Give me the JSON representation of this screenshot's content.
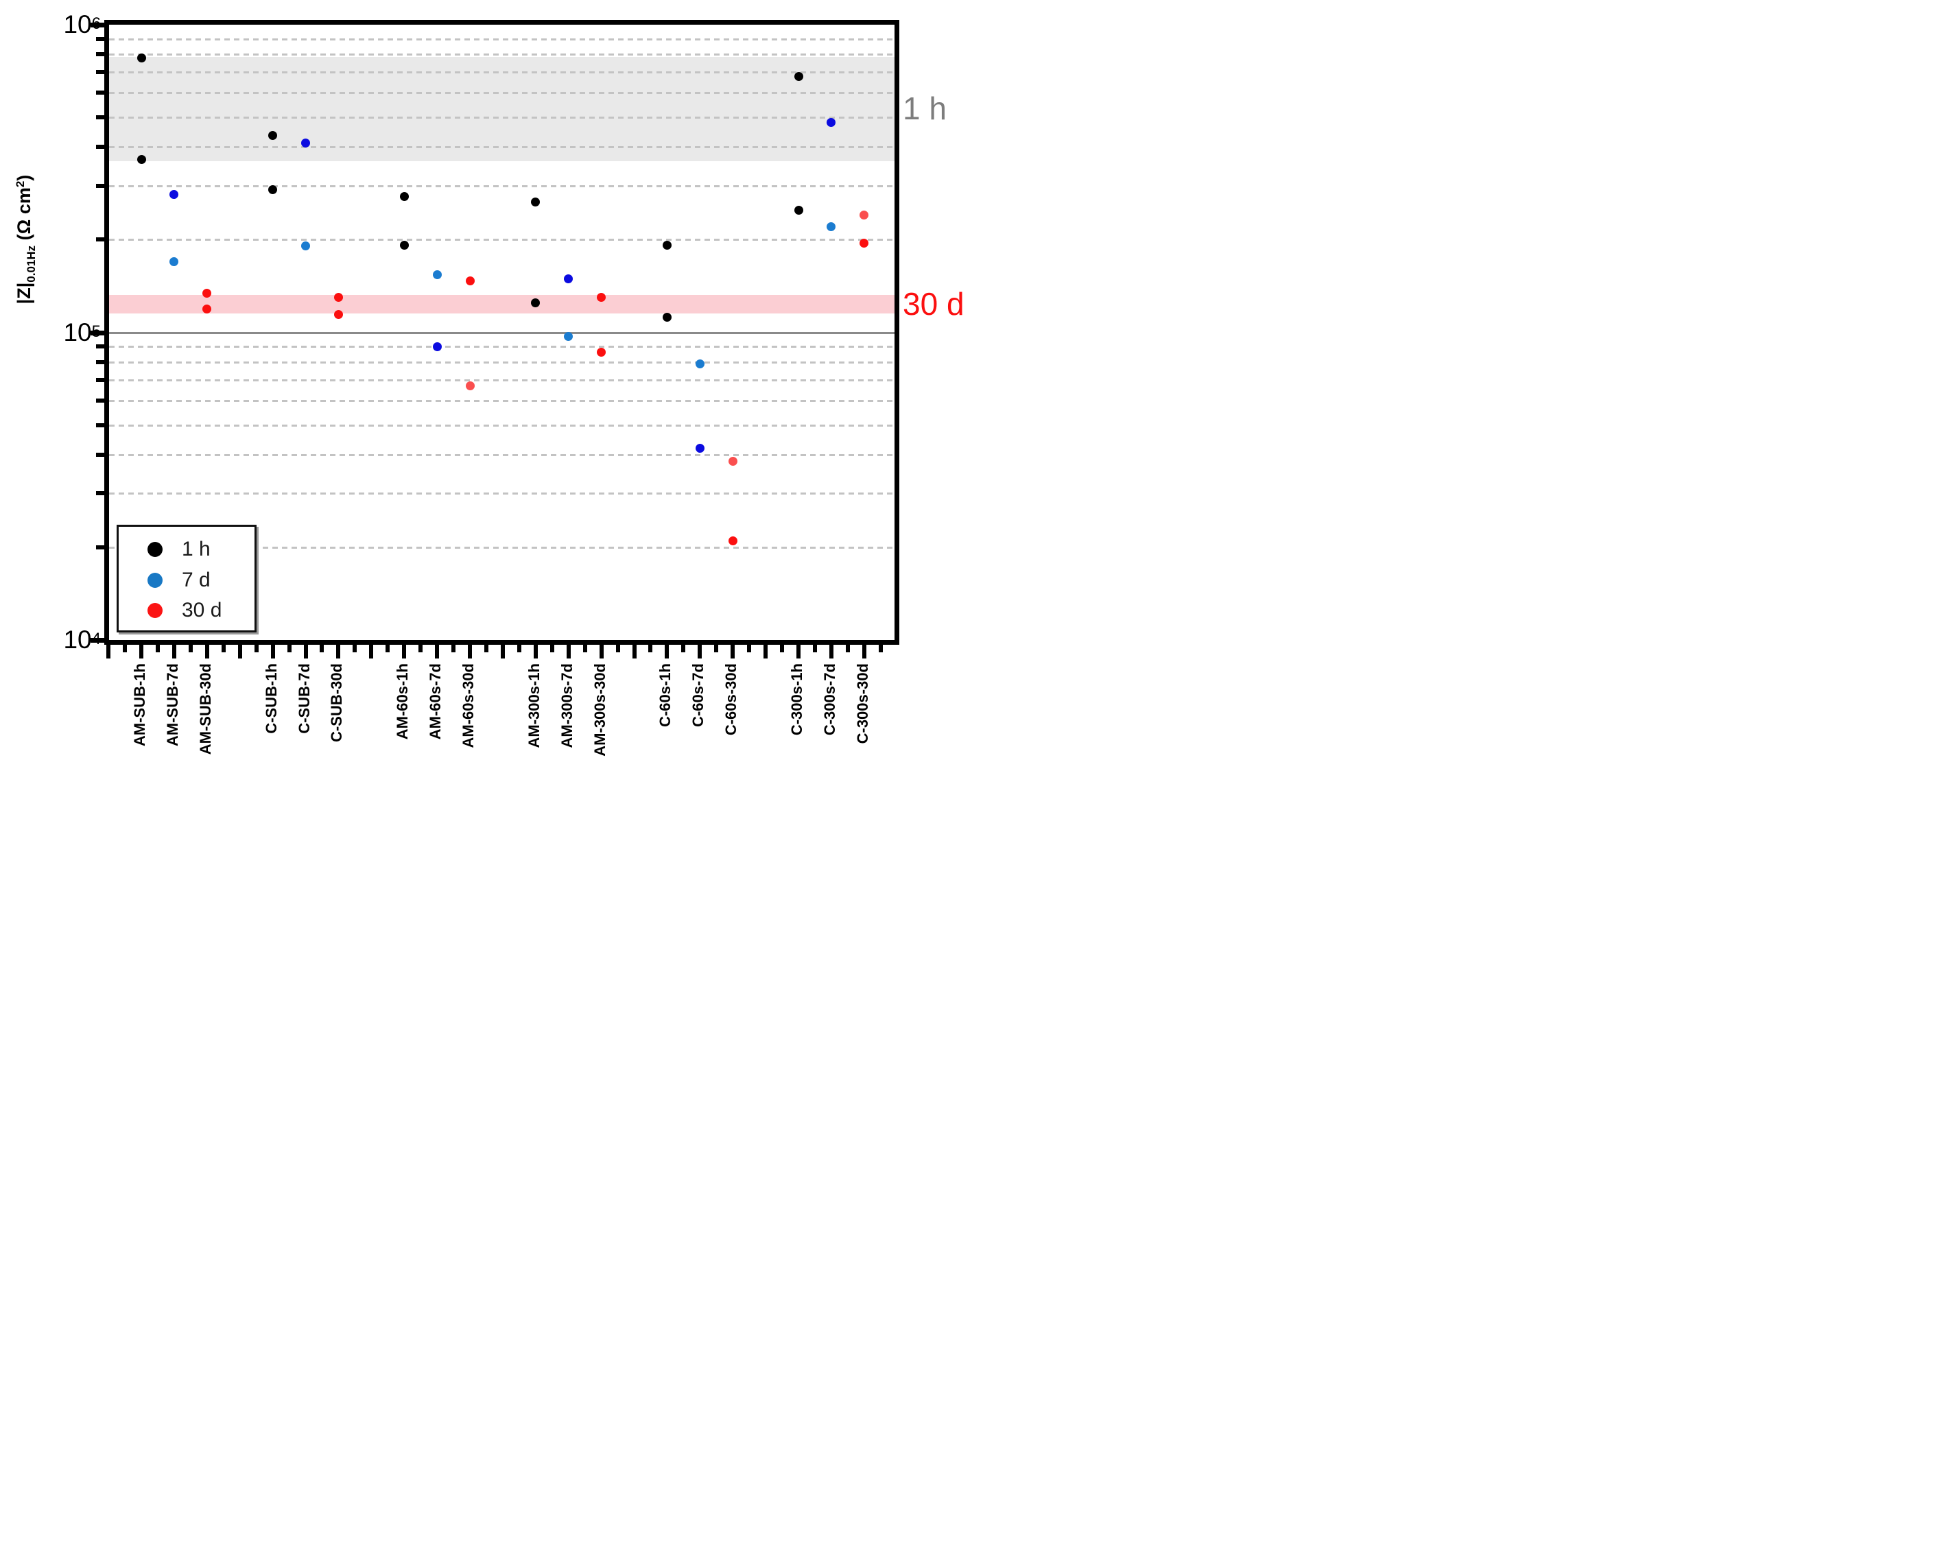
{
  "chart_data": {
    "type": "scatter",
    "title": "",
    "y_axis": {
      "scale": "log",
      "min": 10000,
      "max": 1000000,
      "label_parts": {
        "main": "|Z|",
        "sub": "0.01Hz",
        "unit": " (Ω cm",
        "unit_sup": "2",
        "unit_end": ")"
      },
      "major_ticks": [
        {
          "text": "10",
          "sup": "6",
          "value": 1000000
        },
        {
          "text": "10",
          "sup": "5",
          "value": 100000
        },
        {
          "text": "10",
          "sup": "4",
          "value": 10000
        }
      ],
      "minor_gridline_values": [
        900000,
        800000,
        700000,
        600000,
        500000,
        400000,
        300000,
        200000,
        90000,
        80000,
        70000,
        60000,
        50000,
        40000,
        30000,
        20000
      ]
    },
    "x_axis": {
      "categories": [
        "AM-SUB-1h",
        "AM-SUB-7d",
        "AM-SUB-30d",
        "C-SUB-1h",
        "C-SUB-7d",
        "C-SUB-30d",
        "AM-60s-1h",
        "AM-60s-7d",
        "AM-60s-30d",
        "AM-300s-1h",
        "AM-300s-7d",
        "AM-300s-30d",
        "C-60s-1h",
        "C-60s-7d",
        "C-60s-30d",
        "C-300s-1h",
        "C-300s-7d",
        "C-300s-30d"
      ],
      "group_size": 3,
      "gap_slots": 2
    },
    "bands": [
      {
        "name": "1h-mean-range",
        "label": "1 h",
        "from": 360000,
        "to": 785000,
        "fill": "#e9e9e9",
        "label_color": "#7d7d7d"
      },
      {
        "name": "30d-mean-range",
        "label": "30 d",
        "from": 115000,
        "to": 132000,
        "fill": "#fbced3",
        "label_color": "#fb0f0f"
      }
    ],
    "reference_line": {
      "value": 100000,
      "color": "#8a8a8a"
    },
    "legend": [
      {
        "label": "1 h",
        "color": "#000000"
      },
      {
        "label": "7 d",
        "color": "#1878c4"
      },
      {
        "label": "30 d",
        "color": "#fb1414"
      }
    ],
    "point_colors": {
      "black": "#000000",
      "blue_dark": "#0b0be0",
      "blue_light": "#1b7cd0",
      "red": "#fb0f0f",
      "salmon": "#fa4f4f"
    },
    "columns": [
      {
        "label": "AM-SUB-1h",
        "points": [
          {
            "value": 780000,
            "color": "black"
          },
          {
            "value": 365000,
            "color": "black"
          }
        ]
      },
      {
        "label": "AM-SUB-7d",
        "points": [
          {
            "value": 280000,
            "color": "blue_dark"
          },
          {
            "value": 170000,
            "color": "blue_light"
          }
        ]
      },
      {
        "label": "AM-SUB-30d",
        "points": [
          {
            "value": 134000,
            "color": "red"
          },
          {
            "value": 119000,
            "color": "red"
          }
        ]
      },
      {
        "label": "C-SUB-1h",
        "points": [
          {
            "value": 437000,
            "color": "black"
          },
          {
            "value": 291000,
            "color": "black"
          }
        ]
      },
      {
        "label": "C-SUB-7d",
        "points": [
          {
            "value": 412000,
            "color": "blue_dark"
          },
          {
            "value": 191000,
            "color": "blue_light"
          }
        ]
      },
      {
        "label": "C-SUB-30d",
        "points": [
          {
            "value": 130000,
            "color": "red"
          },
          {
            "value": 114000,
            "color": "red"
          }
        ]
      },
      {
        "label": "AM-60s-1h",
        "points": [
          {
            "value": 276000,
            "color": "black"
          },
          {
            "value": 192000,
            "color": "black"
          }
        ]
      },
      {
        "label": "AM-60s-7d",
        "points": [
          {
            "value": 154000,
            "color": "blue_light"
          },
          {
            "value": 90000,
            "color": "blue_dark"
          }
        ]
      },
      {
        "label": "AM-60s-30d",
        "points": [
          {
            "value": 147000,
            "color": "red"
          },
          {
            "value": 67000,
            "color": "salmon"
          }
        ]
      },
      {
        "label": "AM-300s-1h",
        "points": [
          {
            "value": 265000,
            "color": "black"
          },
          {
            "value": 125000,
            "color": "black"
          }
        ]
      },
      {
        "label": "AM-300s-7d",
        "points": [
          {
            "value": 149000,
            "color": "blue_dark"
          },
          {
            "value": 97000,
            "color": "blue_light"
          }
        ]
      },
      {
        "label": "AM-300s-30d",
        "points": [
          {
            "value": 130000,
            "color": "red"
          },
          {
            "value": 86000,
            "color": "red"
          }
        ]
      },
      {
        "label": "C-60s-1h",
        "points": [
          {
            "value": 192000,
            "color": "black"
          },
          {
            "value": 112000,
            "color": "black"
          }
        ]
      },
      {
        "label": "C-60s-7d",
        "points": [
          {
            "value": 79000,
            "color": "blue_light"
          },
          {
            "value": 42000,
            "color": "blue_dark"
          }
        ]
      },
      {
        "label": "C-60s-30d",
        "points": [
          {
            "value": 38000,
            "color": "salmon"
          },
          {
            "value": 21000,
            "color": "red"
          }
        ]
      },
      {
        "label": "C-300s-1h",
        "points": [
          {
            "value": 680000,
            "color": "black"
          },
          {
            "value": 250000,
            "color": "black"
          }
        ]
      },
      {
        "label": "C-300s-7d",
        "points": [
          {
            "value": 480000,
            "color": "blue_dark"
          },
          {
            "value": 220000,
            "color": "blue_light"
          }
        ]
      },
      {
        "label": "C-300s-30d",
        "points": [
          {
            "value": 240000,
            "color": "salmon"
          },
          {
            "value": 195000,
            "color": "red"
          }
        ]
      }
    ]
  }
}
